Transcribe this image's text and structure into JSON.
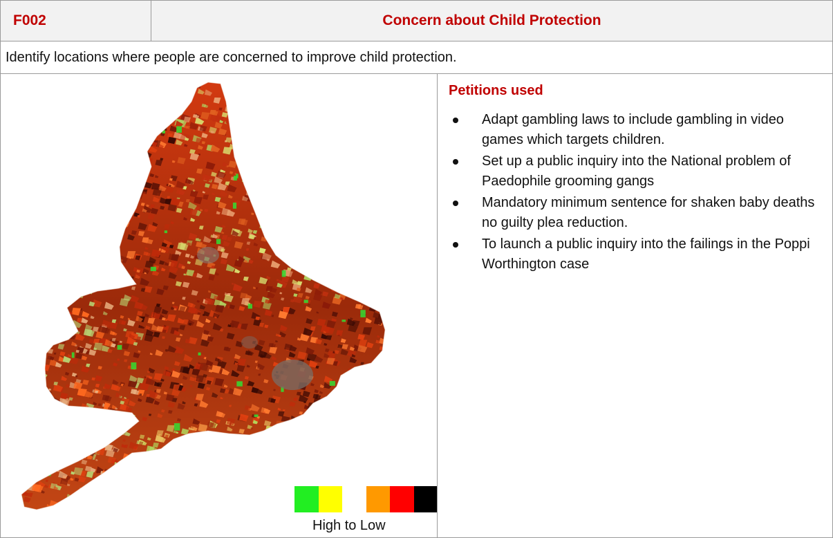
{
  "header": {
    "code": "F002",
    "title": "Concern about Child Protection",
    "accent_color": "#c00000"
  },
  "description": "Identify locations where people are concerned to improve child protection.",
  "petitions": {
    "heading": "Petitions used",
    "items": [
      "Adapt gambling laws to include gambling in video games which targets children.",
      "Set up a public inquiry into the National problem of Paedophile grooming gangs",
      "Mandatory minimum sentence for shaken baby deaths no guilty plea reduction.",
      "To launch a public inquiry into the failings in the Poppi Worthington case"
    ]
  },
  "map": {
    "legend_label": "High to Low",
    "legend_colors": [
      "#22ee22",
      "#ffff00",
      "#ffffff",
      "#ff9900",
      "#ff0000",
      "#000000"
    ]
  }
}
